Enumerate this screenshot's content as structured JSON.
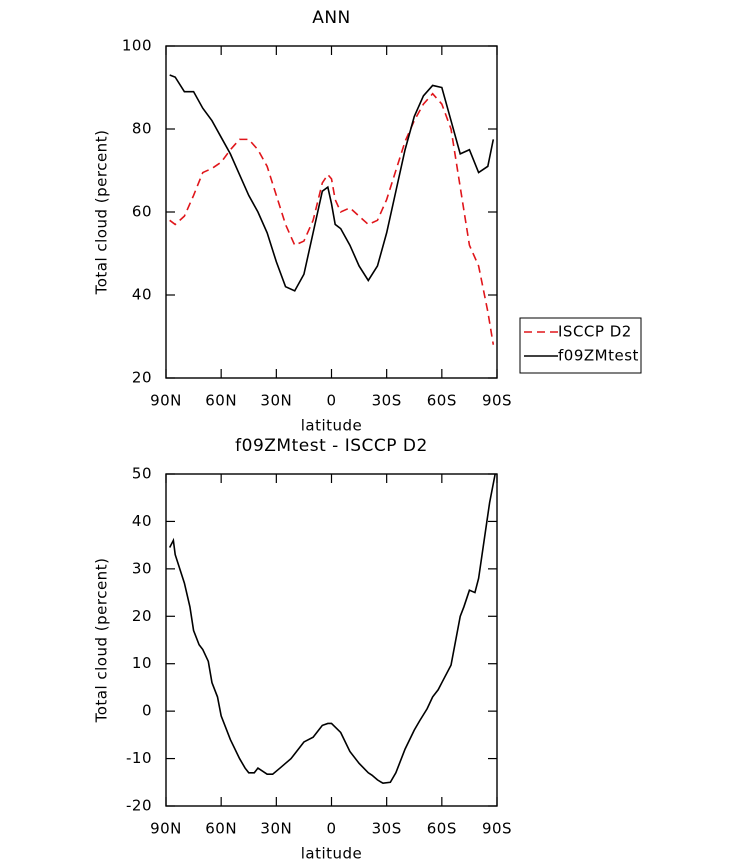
{
  "chart_data": [
    {
      "type": "line",
      "title": "ANN",
      "x_label": "latitude",
      "y_label": "Total cloud (percent)",
      "x": [
        88,
        85,
        80,
        75,
        70,
        65,
        60,
        55,
        50,
        45,
        40,
        35,
        30,
        25,
        20,
        15,
        10,
        5,
        2,
        0,
        -2,
        -5,
        -10,
        -15,
        -20,
        -25,
        -30,
        -35,
        -40,
        -45,
        -50,
        -55,
        -60,
        -65,
        -70,
        -75,
        -80,
        -85,
        -88
      ],
      "series": [
        {
          "name": "ISCCP D2",
          "color": "#e0161b",
          "line_style": "dashed",
          "values": [
            58,
            57,
            59,
            64,
            69.5,
            70.5,
            72,
            75,
            77.5,
            77.5,
            75,
            71,
            64,
            57,
            52,
            53,
            58,
            67,
            69,
            68,
            63,
            60,
            61,
            59,
            57,
            58,
            63,
            70,
            77,
            82,
            86,
            88.5,
            86,
            80,
            66,
            52,
            47,
            36,
            28
          ]
        },
        {
          "name": "f09ZMtest",
          "color": "#000000",
          "line_style": "solid",
          "values": [
            93,
            92.5,
            89,
            89,
            85,
            82,
            78,
            74,
            69,
            64,
            60,
            55,
            48,
            42,
            41,
            45,
            55,
            65,
            66,
            62,
            57,
            56,
            52,
            47,
            43.5,
            47,
            55,
            65,
            75,
            83,
            88,
            90.5,
            90,
            82,
            74,
            75,
            69.5,
            71,
            77.5
          ]
        }
      ],
      "xlim": [
        90,
        -90
      ],
      "xticks": [
        {
          "value": 90,
          "label": "90N"
        },
        {
          "value": 60,
          "label": "60N"
        },
        {
          "value": 30,
          "label": "30N"
        },
        0,
        {
          "value": -30,
          "label": "30S"
        },
        {
          "value": -60,
          "label": "60S"
        },
        {
          "value": -90,
          "label": "90S"
        }
      ],
      "ylim": [
        20,
        100
      ],
      "yticks": [
        20,
        40,
        60,
        80,
        100
      ],
      "grid": false,
      "legend": "right"
    },
    {
      "type": "line",
      "title": "f09ZMtest - ISCCP D2",
      "x_label": "latitude",
      "y_label": "Total cloud (percent)",
      "x": [
        88,
        86,
        85,
        80,
        77,
        75,
        72,
        70,
        67,
        65,
        62,
        60,
        55,
        50,
        47,
        45,
        42,
        40,
        35,
        32,
        28,
        25,
        22,
        20,
        15,
        10,
        8,
        5,
        2,
        0,
        -5,
        -10,
        -15,
        -20,
        -22,
        -25,
        -28,
        -32,
        -35,
        -40,
        -45,
        -48,
        -52,
        -55,
        -58,
        -60,
        -65,
        -70,
        -72,
        -75,
        -78,
        -80,
        -83,
        -86,
        -89
      ],
      "values": [
        34.5,
        36,
        33,
        27,
        22,
        17,
        14,
        13,
        10.5,
        6,
        3,
        -1,
        -6,
        -10,
        -12,
        -13,
        -13,
        -12,
        -13.3,
        -13.3,
        -12,
        -11,
        -10,
        -9,
        -6.5,
        -5.5,
        -4.5,
        -3,
        -2.6,
        -2.6,
        -4.5,
        -8.5,
        -11,
        -13,
        -13.5,
        -14.5,
        -15.2,
        -15,
        -13,
        -8,
        -4,
        -2,
        0.5,
        3,
        4.5,
        6,
        9.7,
        20,
        22,
        25.5,
        25,
        28,
        36,
        44,
        50
      ],
      "color": "#000000",
      "line_style": "solid",
      "xlim": [
        90,
        -90
      ],
      "xticks": [
        {
          "value": 90,
          "label": "90N"
        },
        {
          "value": 60,
          "label": "60N"
        },
        {
          "value": 30,
          "label": "30N"
        },
        0,
        {
          "value": -30,
          "label": "30S"
        },
        {
          "value": -60,
          "label": "60S"
        },
        {
          "value": -90,
          "label": "90S"
        }
      ],
      "ylim": [
        -20,
        50
      ],
      "yticks": [
        -20,
        -10,
        0,
        10,
        20,
        30,
        40,
        50
      ],
      "grid": false
    }
  ]
}
